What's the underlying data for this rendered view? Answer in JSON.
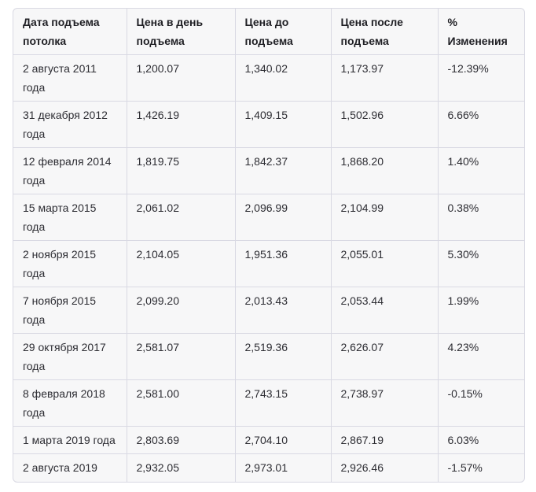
{
  "table": {
    "headers": [
      "Дата подъема потолка",
      "Цена в день подъема",
      "Цена до подъема",
      "Цена после подъема",
      "% Изменения"
    ],
    "rows": [
      [
        "2 августа 2011 года",
        "1,200.07",
        "1,340.02",
        "1,173.97",
        "-12.39%"
      ],
      [
        "31 декабря 2012 года",
        "1,426.19",
        "1,409.15",
        "1,502.96",
        "6.66%"
      ],
      [
        "12 февраля 2014 года",
        "1,819.75",
        "1,842.37",
        "1,868.20",
        "1.40%"
      ],
      [
        "15 марта 2015 года",
        "2,061.02",
        "2,096.99",
        "2,104.99",
        "0.38%"
      ],
      [
        "2 ноября 2015 года",
        "2,104.05",
        "1,951.36",
        "2,055.01",
        "5.30%"
      ],
      [
        "7 ноября 2015 года",
        "2,099.20",
        "2,013.43",
        "2,053.44",
        "1.99%"
      ],
      [
        "29 октября 2017 года",
        "2,581.07",
        "2,519.36",
        "2,626.07",
        "4.23%"
      ],
      [
        "8 февраля 2018 года",
        "2,581.00",
        "2,743.15",
        "2,738.97",
        "-0.15%"
      ],
      [
        "1 марта 2019 года",
        "2,803.69",
        "2,704.10",
        "2,867.19",
        "6.03%"
      ],
      [
        "2 августа 2019 года",
        "2,932.05",
        "2,973.01",
        "2,926.46",
        "-1.57%"
      ]
    ]
  }
}
